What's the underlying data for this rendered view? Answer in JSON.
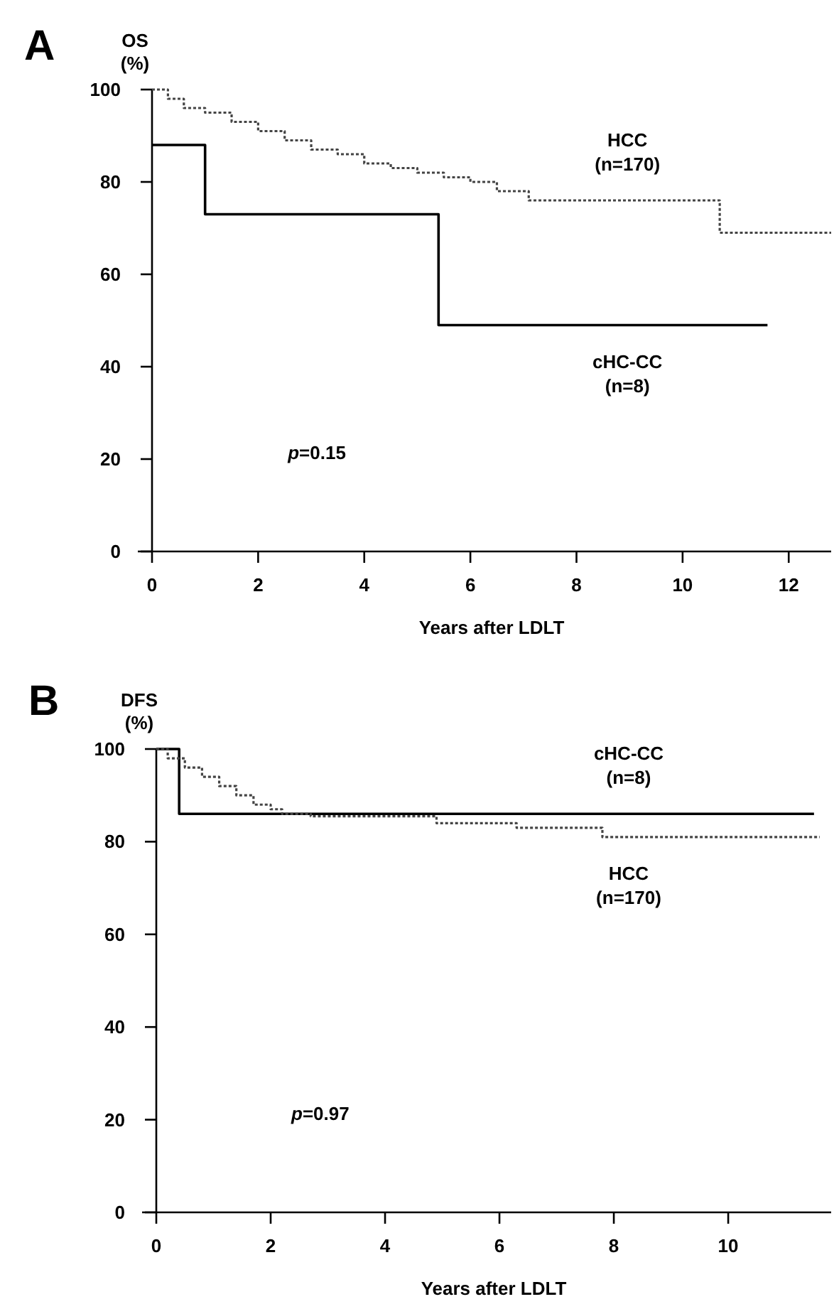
{
  "chart_data": [
    {
      "type": "step",
      "title": "A",
      "xlabel": "Years after LDLT",
      "ylabel": "OS (%)",
      "xlim": [
        0,
        12.8
      ],
      "ylim": [
        0,
        100
      ],
      "xticks": [
        0,
        2,
        4,
        6,
        8,
        10,
        12
      ],
      "yticks": [
        0,
        20,
        40,
        60,
        80,
        100
      ],
      "grid": false,
      "annotations": [
        "p=0.15"
      ],
      "series": [
        {
          "name": "HCC (n=170)",
          "color": "#444444",
          "line_style": "dotted",
          "x": [
            0,
            0.3,
            0.6,
            1,
            1.5,
            2,
            2.5,
            3,
            3.5,
            4,
            4.5,
            5,
            5.5,
            6,
            6.5,
            7.1,
            10.7,
            10.7,
            12.8
          ],
          "values": [
            100,
            98,
            96,
            95,
            93,
            91,
            89,
            87,
            86,
            84,
            83,
            82,
            81,
            80,
            78,
            76,
            76,
            69,
            69
          ]
        },
        {
          "name": "cHC-CC (n=8)",
          "color": "#000000",
          "line_style": "solid",
          "x": [
            0,
            1,
            5.4,
            11.6
          ],
          "values": [
            88,
            73,
            49,
            49
          ]
        }
      ]
    },
    {
      "type": "step",
      "title": "B",
      "xlabel": "Years after LDLT",
      "ylabel": "DFS (%)",
      "xlim": [
        0,
        11.8
      ],
      "ylim": [
        0,
        100
      ],
      "xticks": [
        0,
        2,
        4,
        6,
        8,
        10
      ],
      "yticks": [
        0,
        20,
        40,
        60,
        80,
        100
      ],
      "grid": false,
      "annotations": [
        "p=0.97"
      ],
      "series": [
        {
          "name": "cHC-CC (n=8)",
          "color": "#000000",
          "line_style": "solid",
          "x": [
            0,
            0.4,
            11.5
          ],
          "values": [
            100,
            86,
            86
          ]
        },
        {
          "name": "HCC (n=170)",
          "color": "#444444",
          "line_style": "dotted",
          "x": [
            0,
            0.2,
            0.5,
            0.8,
            1.1,
            1.4,
            1.7,
            2,
            2.2,
            2.7,
            4.9,
            6.3,
            7.8,
            11.6
          ],
          "values": [
            100,
            98,
            96,
            94,
            92,
            90,
            88,
            87,
            86,
            85.5,
            84,
            83,
            81,
            81
          ]
        }
      ]
    }
  ]
}
